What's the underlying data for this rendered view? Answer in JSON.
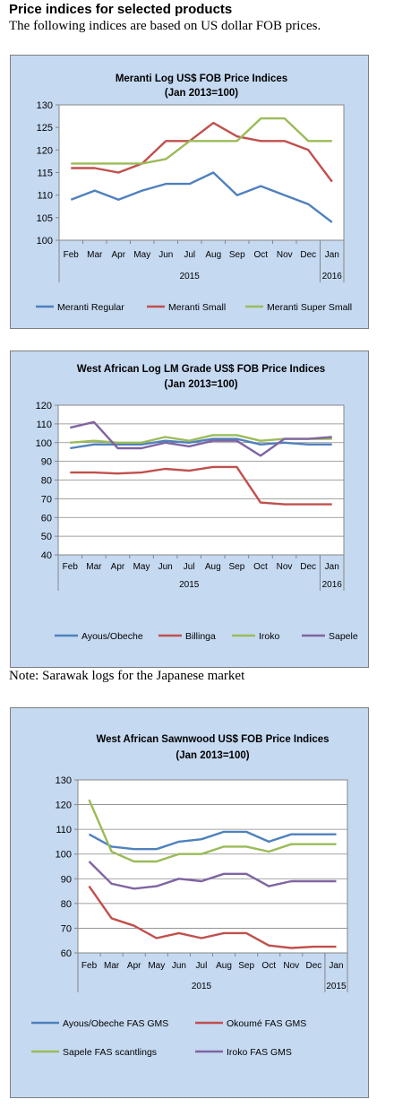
{
  "header": {
    "heading": "Price indices for selected products",
    "intro": "The following indices are based on US dollar FOB prices."
  },
  "note": "Note: Sarawak logs for the Japanese market",
  "chart_data": [
    {
      "type": "line",
      "title": "Meranti Log US$ FOB Price Indices",
      "subtitle": "(Jan 2013=100)",
      "categories": [
        "Feb",
        "Mar",
        "Apr",
        "May",
        "Jun",
        "Jul",
        "Aug",
        "Sep",
        "Oct",
        "Nov",
        "Dec",
        "Jan"
      ],
      "year_labels": [
        "2015",
        "2016"
      ],
      "ylim": [
        100,
        130
      ],
      "yticks": [
        100,
        105,
        110,
        115,
        120,
        125,
        130
      ],
      "grid": false,
      "legend_position": "bottom",
      "series": [
        {
          "name": "Meranti Regular",
          "color": "#4f81bd",
          "values": [
            109,
            111,
            109,
            111,
            112.5,
            112.5,
            115,
            110,
            112,
            110,
            108,
            104
          ]
        },
        {
          "name": "Meranti Small",
          "color": "#c0504d",
          "values": [
            116,
            116,
            115,
            117,
            122,
            122,
            126,
            123,
            122,
            122,
            120,
            113
          ]
        },
        {
          "name": "Meranti Super Small",
          "color": "#9bbb59",
          "values": [
            117,
            117,
            117,
            117,
            118,
            122,
            122,
            122,
            127,
            127,
            122,
            122
          ]
        }
      ]
    },
    {
      "type": "line",
      "title": "West African Log LM Grade US$ FOB Price Indices",
      "subtitle": "(Jan 2013=100)",
      "categories": [
        "Feb",
        "Mar",
        "Apr",
        "May",
        "Jun",
        "Jul",
        "Aug",
        "Sep",
        "Oct",
        "Nov",
        "Dec",
        "Jan"
      ],
      "year_labels": [
        "2015",
        "2016"
      ],
      "ylim": [
        40,
        120
      ],
      "yticks": [
        40,
        50,
        60,
        70,
        80,
        90,
        100,
        110,
        120
      ],
      "grid": true,
      "legend_position": "bottom",
      "series": [
        {
          "name": "Ayous/Obeche",
          "color": "#4f81bd",
          "values": [
            97,
            99,
            99,
            99,
            101,
            100,
            102,
            102,
            99,
            100,
            99,
            99
          ]
        },
        {
          "name": "Billinga",
          "color": "#c0504d",
          "values": [
            84,
            84,
            83.5,
            84,
            86,
            85,
            87,
            87,
            68,
            67,
            67,
            67
          ]
        },
        {
          "name": "Iroko",
          "color": "#9bbb59",
          "values": [
            100,
            101,
            100,
            100,
            103,
            101,
            104,
            104,
            101,
            102,
            102,
            102
          ]
        },
        {
          "name": "Sapele",
          "color": "#8064a2",
          "values": [
            108,
            111,
            97,
            97,
            100,
            98,
            101,
            101,
            93,
            102,
            102,
            103
          ]
        }
      ]
    },
    {
      "type": "line",
      "title": "West African Sawnwood US$ FOB Price Indices",
      "subtitle": "(Jan 2013=100)",
      "categories": [
        "Feb",
        "Mar",
        "Apr",
        "May",
        "Jun",
        "Jul",
        "Aug",
        "Sep",
        "Oct",
        "Nov",
        "Dec",
        "Jan"
      ],
      "year_labels": [
        "2015",
        "2015"
      ],
      "ylim": [
        60,
        130
      ],
      "yticks": [
        60,
        70,
        80,
        90,
        100,
        110,
        120,
        130
      ],
      "grid": true,
      "legend_position": "bottom",
      "series": [
        {
          "name": "Ayous/Obeche FAS GMS",
          "color": "#4f81bd",
          "values": [
            108,
            103,
            102,
            102,
            105,
            106,
            109,
            109,
            105,
            108,
            108,
            108
          ]
        },
        {
          "name": "Okoumé FAS GMS",
          "color": "#c0504d",
          "values": [
            87,
            74,
            71,
            66,
            68,
            66,
            68,
            68,
            63,
            62,
            62.5,
            62.5
          ]
        },
        {
          "name": "Sapele FAS scantlings",
          "color": "#9bbb59",
          "values": [
            122,
            101,
            97,
            97,
            100,
            100,
            103,
            103,
            101,
            104,
            104,
            104
          ]
        },
        {
          "name": "Iroko FAS GMS",
          "color": "#8064a2",
          "values": [
            97,
            88,
            86,
            87,
            90,
            89,
            92,
            92,
            87,
            89,
            89,
            89
          ]
        }
      ]
    }
  ]
}
